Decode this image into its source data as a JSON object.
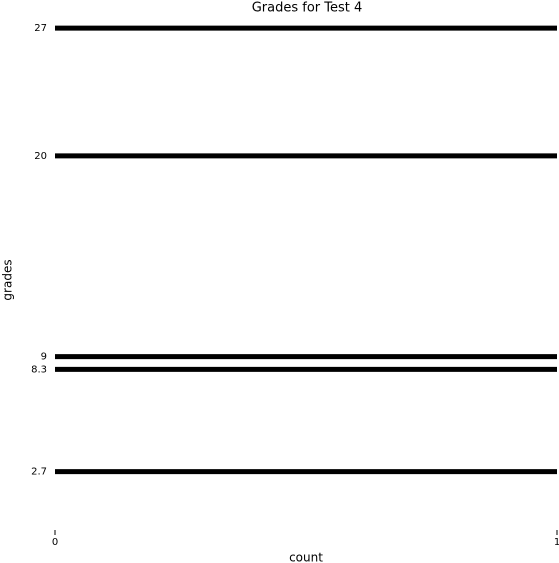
{
  "chart_data": {
    "type": "hbar",
    "title": "Grades for Test 4",
    "x_label": "count",
    "y_label": "grades",
    "grades": [
      27,
      20,
      9,
      8.3,
      2.7
    ],
    "values": [
      1,
      1,
      1,
      1,
      1
    ],
    "color": "#000000",
    "xlim": [
      0,
      1
    ],
    "xticks": [
      0,
      1
    ],
    "ylim": [
      -0.5,
      27.5
    ],
    "yticks": [
      2.7,
      8.3,
      9,
      20,
      27
    ]
  }
}
